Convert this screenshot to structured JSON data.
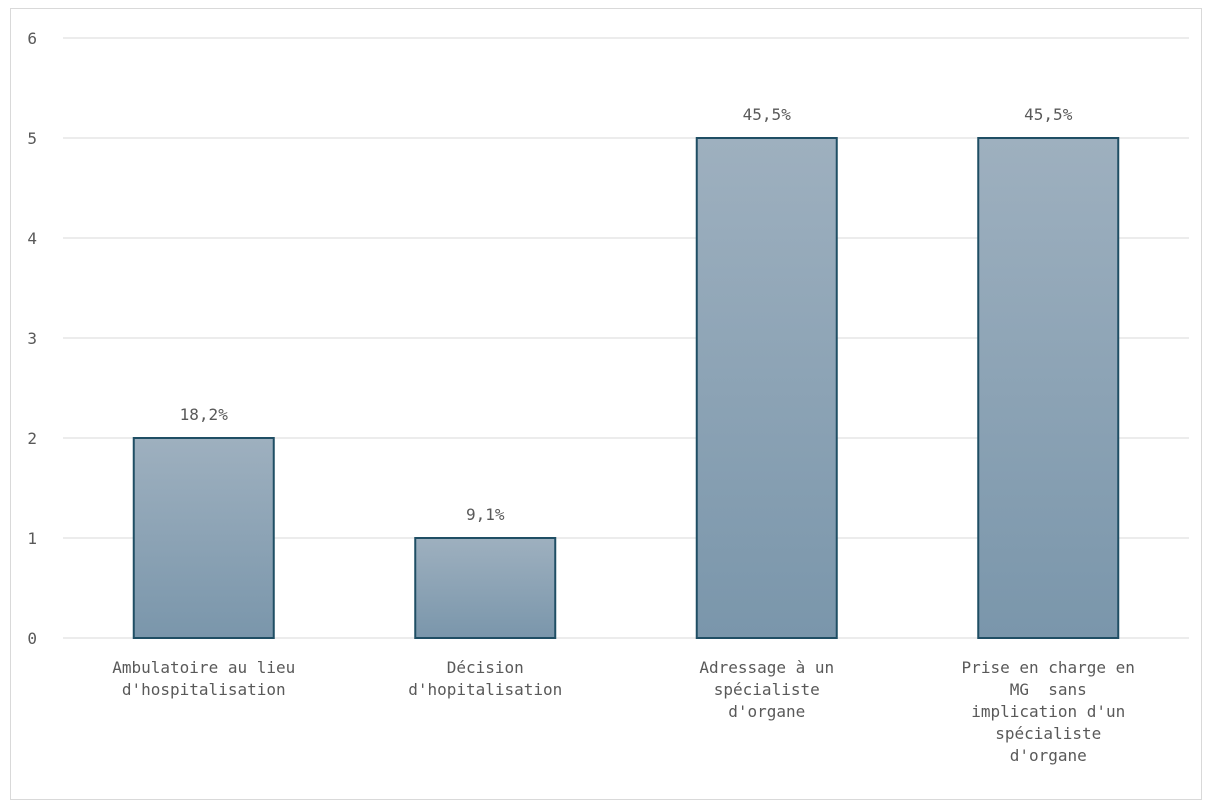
{
  "chart_data": {
    "type": "bar",
    "categories": [
      [
        "Ambulatoire au lieu",
        "d'hospitalisation"
      ],
      [
        "Décision",
        "d'hopitalisation"
      ],
      [
        "Adressage à un",
        "spécialiste",
        "d'organe"
      ],
      [
        "Prise en charge en",
        "MG  sans",
        "implication d'un",
        "spécialiste",
        "d'organe"
      ]
    ],
    "values": [
      2,
      1,
      5,
      5
    ],
    "data_labels": [
      "18,2%",
      "9,1%",
      "45,5%",
      "45,5%"
    ],
    "ylim": [
      0,
      6
    ],
    "yticks": [
      "0",
      "1",
      "2",
      "3",
      "4",
      "5",
      "6"
    ],
    "grid": true,
    "bar_color_top": "#9eb0bf",
    "bar_color_bottom": "#7a96ab",
    "bar_outline": "#1f4e64"
  }
}
